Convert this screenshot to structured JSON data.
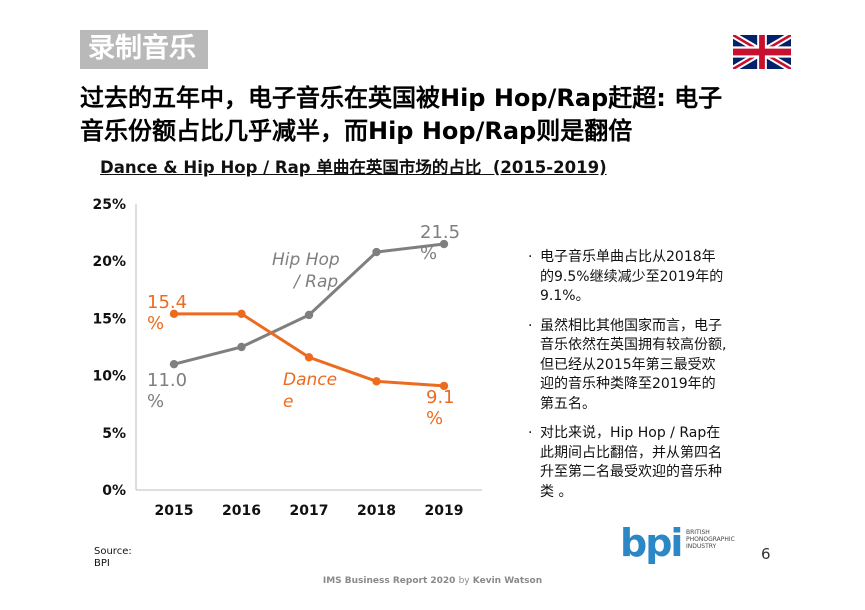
{
  "section_label": "录制音乐",
  "headline": {
    "line1": "过去的五年中，电子音乐在英国被Hip Hop/Rap赶超: 电子",
    "line2": "音乐份额占比几乎减半，而Hip Hop/Rap则是翻倍"
  },
  "chart_subtitle": {
    "main": "Dance & Hip Hop / Rap 单曲在英国市场的占比",
    "period": "(2015-2019)"
  },
  "chart_data": {
    "type": "line",
    "x": [
      "2015",
      "2016",
      "2017",
      "2018",
      "2019"
    ],
    "ylim": [
      0,
      25
    ],
    "yticks": [
      "0%",
      "5%",
      "10%",
      "15%",
      "20%",
      "25%"
    ],
    "grid": false,
    "series": [
      {
        "name": "Hip Hop / Rap",
        "label_lines": [
          "Hip Hop",
          "/ Rap"
        ],
        "color": "#7f7f7f",
        "values": [
          11.0,
          12.5,
          15.3,
          20.8,
          21.5
        ],
        "start_label": [
          "11.0",
          "%"
        ],
        "end_label": [
          "21.5",
          "%"
        ]
      },
      {
        "name": "Dance",
        "label_lines": [
          "Dan",
          "ce",
          "e"
        ],
        "color": "#ed6b1f",
        "values": [
          15.4,
          15.4,
          11.6,
          9.5,
          9.1
        ],
        "start_label": [
          "15.4",
          "%"
        ],
        "end_label": [
          "9.1",
          "%"
        ]
      }
    ]
  },
  "bullets": [
    [
      "电子音乐单曲占比从2018年",
      "的9.5%继续减少至2019年的",
      "9.1%。"
    ],
    [
      "虽然相比其他国家而言，电子",
      "音乐依然在英国拥有较高份额,",
      "但已经从2015年第三最受欢",
      "迎的音乐种类降至2019年的",
      "第五名。"
    ],
    [
      "对比来说，Hip Hop / Rap在",
      "此期间占比翻倍，并从第四名",
      "升至第二名最受欢迎的音乐种",
      "类 。"
    ]
  ],
  "bullet_marker": "·",
  "source": {
    "label": "Source:",
    "value": "BPI"
  },
  "logo": {
    "mark": "bpi",
    "lines": [
      "BRITISH",
      "PHONOGRAPHIC",
      "INDUSTRY"
    ]
  },
  "page_number": "6",
  "footer": {
    "title": "IMS Business Report 2020",
    "by": "by",
    "author": "Kevin Watson"
  },
  "colors": {
    "dance": "#ed6b1f",
    "hiphop": "#7f7f7f",
    "logo": "#2b87c5",
    "tag": "#b9b9b9"
  },
  "icons": {
    "flag": "uk-flag-icon"
  }
}
